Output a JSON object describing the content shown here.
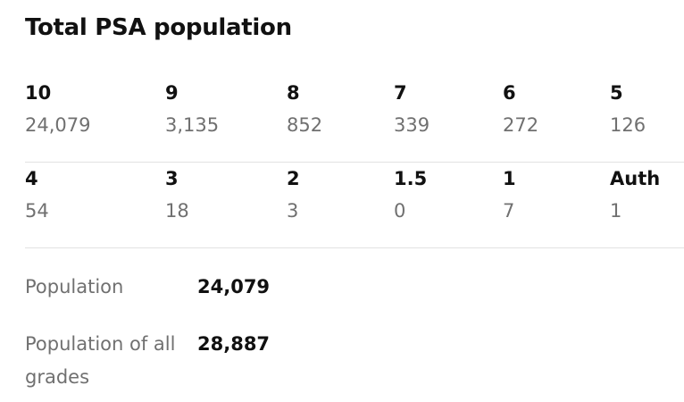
{
  "header": {
    "title": "Total PSA population"
  },
  "grades": {
    "rows": [
      [
        {
          "grade": "10",
          "count": "24,079"
        },
        {
          "grade": "9",
          "count": "3,135"
        },
        {
          "grade": "8",
          "count": "852"
        },
        {
          "grade": "7",
          "count": "339"
        },
        {
          "grade": "6",
          "count": "272"
        },
        {
          "grade": "5",
          "count": "126"
        }
      ],
      [
        {
          "grade": "4",
          "count": "54"
        },
        {
          "grade": "3",
          "count": "18"
        },
        {
          "grade": "2",
          "count": "3"
        },
        {
          "grade": "1.5",
          "count": "0"
        },
        {
          "grade": "1",
          "count": "7"
        },
        {
          "grade": "Auth",
          "count": "1"
        }
      ]
    ]
  },
  "summary": [
    {
      "label": "Population",
      "value": "24,079"
    },
    {
      "label": "Population of all grades",
      "value": "28,887"
    }
  ]
}
